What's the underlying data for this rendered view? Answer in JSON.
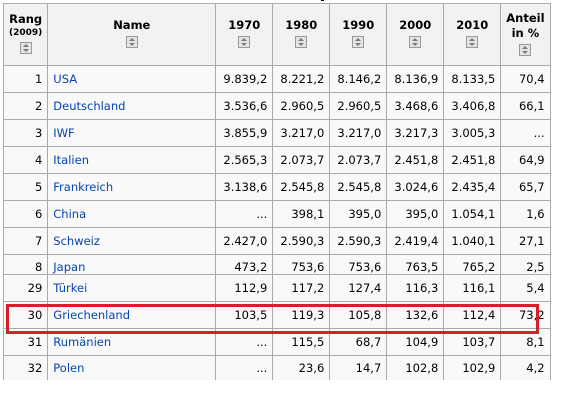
{
  "table": {
    "headers": {
      "rank": "Rang",
      "rank_sub": "(2009)",
      "name": "Name",
      "y1970": "1970",
      "y1980": "1980",
      "y1990": "1990",
      "y2000": "2000",
      "y2010": "2010",
      "share_l1": "Anteil",
      "share_l2": "in %"
    },
    "rows": [
      {
        "rank": "1",
        "name": "USA",
        "v1970": "9.839,2",
        "v1980": "8.221,2",
        "v1990": "8.146,2",
        "v2000": "8.136,9",
        "v2010": "8.133,5",
        "share": "70,4"
      },
      {
        "rank": "2",
        "name": "Deutschland",
        "v1970": "3.536,6",
        "v1980": "2.960,5",
        "v1990": "2.960,5",
        "v2000": "3.468,6",
        "v2010": "3.406,8",
        "share": "66,1"
      },
      {
        "rank": "3",
        "name": "IWF",
        "v1970": "3.855,9",
        "v1980": "3.217,0",
        "v1990": "3.217,0",
        "v2000": "3.217,3",
        "v2010": "3.005,3",
        "share": "..."
      },
      {
        "rank": "4",
        "name": "Italien",
        "v1970": "2.565,3",
        "v1980": "2.073,7",
        "v1990": "2.073,7",
        "v2000": "2.451,8",
        "v2010": "2.451,8",
        "share": "64,9"
      },
      {
        "rank": "5",
        "name": "Frankreich",
        "v1970": "3.138,6",
        "v1980": "2.545,8",
        "v1990": "2.545,8",
        "v2000": "3.024,6",
        "v2010": "2.435,4",
        "share": "65,7"
      },
      {
        "rank": "6",
        "name": "China",
        "v1970": "...",
        "v1980": "398,1",
        "v1990": "395,0",
        "v2000": "395,0",
        "v2010": "1.054,1",
        "share": "1,6"
      },
      {
        "rank": "7",
        "name": "Schweiz",
        "v1970": "2.427,0",
        "v1980": "2.590,3",
        "v1990": "2.590,3",
        "v2000": "2.419,4",
        "v2010": "1.040,1",
        "share": "27,1"
      },
      {
        "rank": "8",
        "name": "Japan",
        "v1970": "473,2",
        "v1980": "753,6",
        "v1990": "753,6",
        "v2000": "763,5",
        "v2010": "765,2",
        "share": "2,5"
      },
      {
        "rank": "29",
        "name": "Türkei",
        "v1970": "112,9",
        "v1980": "117,2",
        "v1990": "127,4",
        "v2000": "116,3",
        "v2010": "116,1",
        "share": "5,4"
      },
      {
        "rank": "30",
        "name": "Griechenland",
        "v1970": "103,5",
        "v1980": "119,3",
        "v1990": "105,8",
        "v2000": "132,6",
        "v2010": "112,4",
        "share": "73,2"
      },
      {
        "rank": "31",
        "name": "Rumänien",
        "v1970": "...",
        "v1980": "115,5",
        "v1990": "68,7",
        "v2000": "104,9",
        "v2010": "103,7",
        "share": "8,1"
      },
      {
        "rank": "32",
        "name": "Polen",
        "v1970": "...",
        "v1980": "23,6",
        "v1990": "14,7",
        "v2000": "102,8",
        "v2010": "102,9",
        "share": "4,2"
      }
    ]
  },
  "highlight": {
    "color": "#d61f2a"
  },
  "colors": {
    "link": "#0645ad",
    "header_bg": "#f2f2f2",
    "cell_bg": "#f9f9f9",
    "border": "#aaaaaa"
  }
}
